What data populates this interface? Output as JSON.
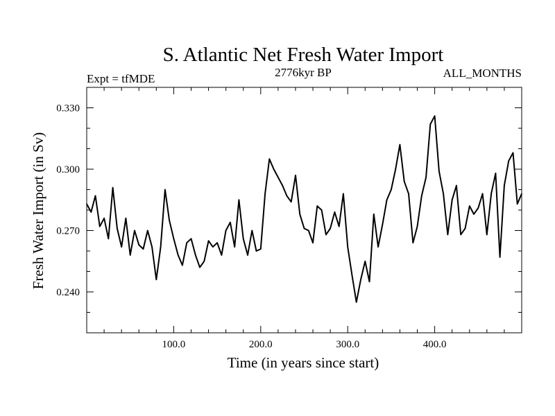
{
  "chart_data": {
    "type": "line",
    "title": "S. Atlantic Net Fresh Water Import",
    "subtitle_left": "Expt = tfMDE",
    "subtitle_center": "2776kyr BP",
    "subtitle_right": "ALL_MONTHS",
    "xlabel": "Time (in years since start)",
    "ylabel": "Fresh Water Import (in Sv)",
    "xlim": [
      0,
      500
    ],
    "ylim": [
      0.22,
      0.34
    ],
    "xticks": [
      100,
      200,
      300,
      400
    ],
    "xtick_labels": [
      "100.0",
      "200.0",
      "300.0",
      "400.0"
    ],
    "yticks": [
      0.24,
      0.27,
      0.3,
      0.33
    ],
    "ytick_labels": [
      "0.240",
      "0.270",
      "0.300",
      "0.330"
    ],
    "grid": false,
    "series": [
      {
        "name": "Fresh Water Import",
        "x": [
          0,
          5,
          10,
          15,
          20,
          25,
          30,
          35,
          40,
          45,
          50,
          55,
          60,
          65,
          70,
          75,
          80,
          85,
          90,
          95,
          100,
          105,
          110,
          115,
          120,
          125,
          130,
          135,
          140,
          145,
          150,
          155,
          160,
          165,
          170,
          175,
          180,
          185,
          190,
          195,
          200,
          205,
          210,
          215,
          220,
          225,
          230,
          235,
          240,
          245,
          250,
          255,
          260,
          265,
          270,
          275,
          280,
          285,
          290,
          295,
          300,
          305,
          310,
          315,
          320,
          325,
          330,
          335,
          340,
          345,
          350,
          355,
          360,
          365,
          370,
          375,
          380,
          385,
          390,
          395,
          400,
          405,
          410,
          415,
          420,
          425,
          430,
          435,
          440,
          445,
          450,
          455,
          460,
          465,
          470,
          475,
          480,
          485,
          490,
          495,
          500
        ],
        "values": [
          0.283,
          0.279,
          0.287,
          0.272,
          0.276,
          0.266,
          0.291,
          0.271,
          0.262,
          0.276,
          0.258,
          0.27,
          0.263,
          0.261,
          0.27,
          0.262,
          0.246,
          0.262,
          0.29,
          0.275,
          0.266,
          0.258,
          0.253,
          0.264,
          0.266,
          0.258,
          0.252,
          0.255,
          0.265,
          0.262,
          0.264,
          0.258,
          0.27,
          0.274,
          0.262,
          0.285,
          0.266,
          0.258,
          0.27,
          0.26,
          0.261,
          0.288,
          0.305,
          0.3,
          0.296,
          0.292,
          0.287,
          0.284,
          0.297,
          0.278,
          0.271,
          0.27,
          0.264,
          0.282,
          0.28,
          0.268,
          0.271,
          0.279,
          0.272,
          0.288,
          0.262,
          0.248,
          0.235,
          0.246,
          0.255,
          0.245,
          0.278,
          0.262,
          0.273,
          0.285,
          0.29,
          0.3,
          0.312,
          0.294,
          0.288,
          0.264,
          0.272,
          0.287,
          0.296,
          0.322,
          0.326,
          0.299,
          0.288,
          0.268,
          0.285,
          0.292,
          0.268,
          0.271,
          0.282,
          0.278,
          0.281,
          0.288,
          0.268,
          0.288,
          0.298,
          0.257,
          0.292,
          0.304,
          0.308,
          0.283,
          0.288
        ]
      }
    ]
  }
}
